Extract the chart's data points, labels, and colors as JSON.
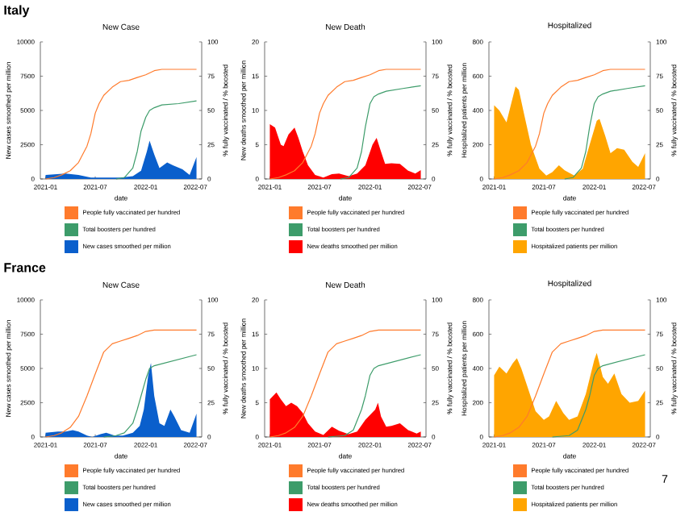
{
  "chart_data": [
    {
      "type": "area",
      "title": "New Case",
      "xlabel": "date",
      "ylabel": "New cases smoothed per million",
      "y2label": "% fully vaccinated / % boosted",
      "annotations": [
        "Italy"
      ],
      "legend": "bottom",
      "xlim": [
        "2020-12-13",
        "2022-07-24"
      ],
      "xticks": [
        "2021-01",
        "2021-07",
        "2022-01",
        "2022-07"
      ],
      "ylim": [
        0,
        10000
      ],
      "yticks": [
        0,
        2500,
        5000,
        7500,
        10000
      ],
      "y2lim": [
        0,
        100
      ],
      "y2ticks": [
        0,
        25,
        50,
        75,
        100
      ],
      "series": [
        {
          "name": "People fully vaccinated per hundred",
          "type": "line",
          "axis": "y2",
          "color": "#ff7b2c",
          "x": [
            "2021-01-01",
            "2021-02-01",
            "2021-03-01",
            "2021-04-01",
            "2021-05-01",
            "2021-06-01",
            "2021-06-15",
            "2021-07-01",
            "2021-07-15",
            "2021-08-01",
            "2021-09-01",
            "2021-10-01",
            "2021-11-01",
            "2021-12-01",
            "2022-01-01",
            "2022-02-01",
            "2022-03-01",
            "2022-07-05"
          ],
          "values": [
            0,
            1,
            3,
            6,
            12,
            24,
            33,
            48,
            55,
            61,
            67,
            71,
            72,
            74,
            76,
            79,
            80,
            80
          ]
        },
        {
          "name": "Total boosters per hundred",
          "type": "line",
          "axis": "y2",
          "color": "#3d9c6a",
          "x": [
            "2021-09-15",
            "2021-10-15",
            "2021-11-15",
            "2021-12-01",
            "2021-12-15",
            "2022-01-01",
            "2022-01-15",
            "2022-02-01",
            "2022-03-01",
            "2022-05-01",
            "2022-07-05"
          ],
          "values": [
            0,
            1,
            8,
            20,
            35,
            45,
            50,
            52,
            54,
            55,
            57
          ]
        },
        {
          "name": "New cases smoothed per million",
          "color": "#0a5fcc",
          "x": [
            "2021-01-01",
            "2021-03-15",
            "2021-05-01",
            "2021-06-15",
            "2021-08-01",
            "2021-10-01",
            "2021-11-15",
            "2021-12-15",
            "2022-01-05",
            "2022-01-15",
            "2022-02-01",
            "2022-02-20",
            "2022-03-20",
            "2022-04-10",
            "2022-05-15",
            "2022-06-10",
            "2022-07-05"
          ],
          "values": [
            300,
            400,
            300,
            100,
            100,
            100,
            200,
            600,
            2000,
            2800,
            1800,
            800,
            1200,
            1000,
            700,
            300,
            1600
          ]
        }
      ]
    },
    {
      "type": "area",
      "title": "New Death",
      "xlabel": "date",
      "ylabel": "New deaths smoothed per million",
      "y2label": "% fully vaccinated / % boosted",
      "legend": "bottom",
      "xlim": [
        "2020-12-13",
        "2022-07-24"
      ],
      "xticks": [
        "2021-01",
        "2021-07",
        "2022-01",
        "2022-07"
      ],
      "ylim": [
        0,
        20
      ],
      "yticks": [
        0,
        5,
        10,
        15,
        20
      ],
      "y2lim": [
        0,
        100
      ],
      "y2ticks": [
        0,
        25,
        50,
        75,
        100
      ],
      "series": [
        {
          "name": "People fully vaccinated per hundred",
          "type": "line",
          "axis": "y2",
          "color": "#ff7b2c",
          "x": [
            "2021-01-01",
            "2021-02-01",
            "2021-03-01",
            "2021-04-01",
            "2021-05-01",
            "2021-06-01",
            "2021-06-15",
            "2021-07-01",
            "2021-07-15",
            "2021-08-01",
            "2021-09-01",
            "2021-10-01",
            "2021-11-01",
            "2021-12-01",
            "2022-01-01",
            "2022-02-01",
            "2022-03-01",
            "2022-07-05"
          ],
          "values": [
            0,
            1,
            3,
            6,
            12,
            24,
            33,
            48,
            55,
            61,
            67,
            71,
            72,
            74,
            76,
            79,
            80,
            80
          ]
        },
        {
          "name": "Total boosters per hundred",
          "type": "line",
          "axis": "y2",
          "color": "#3d9c6a",
          "x": [
            "2021-09-15",
            "2021-10-15",
            "2021-11-15",
            "2021-12-01",
            "2021-12-15",
            "2022-01-01",
            "2022-01-15",
            "2022-02-01",
            "2022-03-01",
            "2022-05-01",
            "2022-07-05"
          ],
          "values": [
            0,
            1,
            8,
            20,
            38,
            55,
            60,
            62,
            64,
            66,
            68
          ]
        },
        {
          "name": "New deaths smoothed per million",
          "color": "#ff0000",
          "x": [
            "2021-01-01",
            "2021-01-20",
            "2021-02-10",
            "2021-02-20",
            "2021-03-10",
            "2021-04-01",
            "2021-04-15",
            "2021-05-01",
            "2021-05-20",
            "2021-06-15",
            "2021-07-15",
            "2021-08-15",
            "2021-09-10",
            "2021-10-15",
            "2021-11-15",
            "2021-12-15",
            "2022-01-10",
            "2022-01-25",
            "2022-02-10",
            "2022-02-25",
            "2022-03-20",
            "2022-04-20",
            "2022-05-20",
            "2022-06-15",
            "2022-07-05"
          ],
          "values": [
            8,
            7.5,
            5,
            4.8,
            6.5,
            7.5,
            6,
            4,
            2,
            0.6,
            0.2,
            0.7,
            0.8,
            0.4,
            0.8,
            2,
            5,
            6,
            4,
            2.2,
            2.3,
            2.2,
            1.2,
            0.8,
            1.3
          ]
        }
      ]
    },
    {
      "type": "area",
      "title": "Hospitalized",
      "xlabel": "date",
      "ylabel": "Hospitalized patients per million",
      "y2label": "% fully vaccinated / % boosted",
      "legend": "bottom",
      "xlim": [
        "2020-12-13",
        "2022-07-24"
      ],
      "xticks": [
        "2021-01",
        "2021-07",
        "2022-01",
        "2022-07"
      ],
      "ylim": [
        0,
        800
      ],
      "yticks": [
        0,
        200,
        400,
        600,
        800
      ],
      "y2lim": [
        0,
        100
      ],
      "y2ticks": [
        0,
        25,
        50,
        75,
        100
      ],
      "series": [
        {
          "name": "People fully vaccinated per hundred",
          "type": "line",
          "axis": "y2",
          "color": "#ff7b2c",
          "x": [
            "2021-01-01",
            "2021-02-01",
            "2021-03-01",
            "2021-04-01",
            "2021-05-01",
            "2021-06-01",
            "2021-06-15",
            "2021-07-01",
            "2021-07-15",
            "2021-08-01",
            "2021-09-01",
            "2021-10-01",
            "2021-11-01",
            "2021-12-01",
            "2022-01-01",
            "2022-02-01",
            "2022-03-01",
            "2022-07-05"
          ],
          "values": [
            0,
            1,
            3,
            6,
            12,
            24,
            33,
            48,
            55,
            61,
            67,
            71,
            72,
            74,
            76,
            79,
            80,
            80
          ]
        },
        {
          "name": "Total boosters per hundred",
          "type": "line",
          "axis": "y2",
          "color": "#3d9c6a",
          "x": [
            "2021-09-15",
            "2021-10-15",
            "2021-11-15",
            "2021-12-01",
            "2021-12-15",
            "2022-01-01",
            "2022-01-15",
            "2022-02-01",
            "2022-03-01",
            "2022-05-01",
            "2022-07-05"
          ],
          "values": [
            0,
            1,
            8,
            20,
            38,
            55,
            60,
            62,
            64,
            66,
            68
          ]
        },
        {
          "name": "Hospitalized patients per million",
          "color": "#ffa500",
          "x": [
            "2021-01-01",
            "2021-01-20",
            "2021-02-15",
            "2021-03-01",
            "2021-03-20",
            "2021-04-01",
            "2021-04-20",
            "2021-05-15",
            "2021-06-15",
            "2021-07-10",
            "2021-08-01",
            "2021-08-25",
            "2021-09-15",
            "2021-10-20",
            "2021-11-20",
            "2021-12-15",
            "2022-01-10",
            "2022-01-20",
            "2022-02-10",
            "2022-03-01",
            "2022-03-25",
            "2022-04-20",
            "2022-05-20",
            "2022-06-10",
            "2022-07-05"
          ],
          "values": [
            430,
            400,
            330,
            420,
            540,
            520,
            380,
            200,
            60,
            20,
            40,
            80,
            50,
            20,
            60,
            200,
            340,
            350,
            250,
            150,
            180,
            170,
            100,
            70,
            150
          ]
        }
      ]
    },
    {
      "type": "area",
      "title": "New Case",
      "xlabel": "date",
      "ylabel": "New cases smoothed per million",
      "y2label": "% fully vaccinated / % boosted",
      "annotations": [
        "France"
      ],
      "legend": "bottom",
      "xlim": [
        "2020-12-13",
        "2022-07-24"
      ],
      "xticks": [
        "2021-01",
        "2021-07",
        "2022-01",
        "2022-07"
      ],
      "ylim": [
        0,
        10000
      ],
      "yticks": [
        0,
        2500,
        5000,
        7500,
        10000
      ],
      "y2lim": [
        0,
        100
      ],
      "y2ticks": [
        0,
        25,
        50,
        75,
        100
      ],
      "series": [
        {
          "name": "People fully vaccinated per hundred",
          "type": "line",
          "axis": "y2",
          "color": "#ff7b2c",
          "x": [
            "2021-01-01",
            "2021-02-01",
            "2021-03-01",
            "2021-04-01",
            "2021-05-01",
            "2021-06-01",
            "2021-07-01",
            "2021-08-01",
            "2021-09-01",
            "2021-10-01",
            "2021-11-01",
            "2021-12-01",
            "2022-01-01",
            "2022-02-01",
            "2022-07-05"
          ],
          "values": [
            0,
            1,
            3,
            7,
            15,
            30,
            46,
            62,
            68,
            70,
            72,
            74,
            77,
            78,
            78
          ]
        },
        {
          "name": "Total boosters per hundred",
          "type": "line",
          "axis": "y2",
          "color": "#3d9c6a",
          "x": [
            "2021-08-01",
            "2021-09-15",
            "2021-10-15",
            "2021-11-15",
            "2021-12-01",
            "2021-12-15",
            "2022-01-01",
            "2022-01-15",
            "2022-02-01",
            "2022-07-05"
          ],
          "values": [
            0,
            1,
            3,
            10,
            20,
            30,
            42,
            50,
            52,
            60
          ]
        },
        {
          "name": "New cases smoothed per million",
          "color": "#0a5fcc",
          "x": [
            "2021-01-01",
            "2021-02-15",
            "2021-03-15",
            "2021-04-10",
            "2021-05-01",
            "2021-06-01",
            "2021-06-20",
            "2021-07-20",
            "2021-08-10",
            "2021-09-10",
            "2021-10-10",
            "2021-11-15",
            "2021-12-10",
            "2021-12-25",
            "2022-01-10",
            "2022-01-20",
            "2022-02-01",
            "2022-02-20",
            "2022-03-10",
            "2022-04-01",
            "2022-04-15",
            "2022-05-10",
            "2022-06-10",
            "2022-07-05"
          ],
          "values": [
            300,
            400,
            400,
            500,
            400,
            100,
            0,
            200,
            300,
            100,
            100,
            300,
            800,
            2000,
            4500,
            5400,
            3000,
            1000,
            800,
            2000,
            1500,
            500,
            300,
            1700
          ]
        }
      ]
    },
    {
      "type": "area",
      "title": "New Death",
      "xlabel": "date",
      "ylabel": "New deaths smoothed per million",
      "y2label": "% fully vaccinated / % boosted",
      "legend": "bottom",
      "xlim": [
        "2020-12-13",
        "2022-07-24"
      ],
      "xticks": [
        "2021-01",
        "2021-07",
        "2022-01",
        "2022-07"
      ],
      "ylim": [
        0,
        20
      ],
      "yticks": [
        0,
        5,
        10,
        15,
        20
      ],
      "y2lim": [
        0,
        100
      ],
      "y2ticks": [
        0,
        25,
        50,
        75,
        100
      ],
      "series": [
        {
          "name": "People fully vaccinated per hundred",
          "type": "line",
          "axis": "y2",
          "color": "#ff7b2c",
          "x": [
            "2021-01-01",
            "2021-02-01",
            "2021-03-01",
            "2021-04-01",
            "2021-05-01",
            "2021-06-01",
            "2021-07-01",
            "2021-08-01",
            "2021-09-01",
            "2021-10-01",
            "2021-11-01",
            "2021-12-01",
            "2022-01-01",
            "2022-02-01",
            "2022-07-05"
          ],
          "values": [
            0,
            1,
            3,
            7,
            15,
            30,
            46,
            62,
            68,
            70,
            72,
            74,
            77,
            78,
            78
          ]
        },
        {
          "name": "Total boosters per hundred",
          "type": "line",
          "axis": "y2",
          "color": "#3d9c6a",
          "x": [
            "2021-08-01",
            "2021-10-01",
            "2021-11-01",
            "2021-12-01",
            "2021-12-15",
            "2022-01-01",
            "2022-01-15",
            "2022-02-01",
            "2022-07-05"
          ],
          "values": [
            0,
            1,
            5,
            20,
            30,
            45,
            50,
            52,
            60
          ]
        },
        {
          "name": "New deaths smoothed per million",
          "color": "#ff0000",
          "x": [
            "2021-01-01",
            "2021-01-25",
            "2021-02-10",
            "2021-03-01",
            "2021-03-20",
            "2021-04-10",
            "2021-05-01",
            "2021-05-20",
            "2021-06-15",
            "2021-07-15",
            "2021-08-15",
            "2021-09-10",
            "2021-10-15",
            "2021-11-15",
            "2021-12-15",
            "2022-01-20",
            "2022-01-30",
            "2022-02-10",
            "2022-03-01",
            "2022-03-20",
            "2022-04-20",
            "2022-05-20",
            "2022-06-20",
            "2022-07-05"
          ],
          "values": [
            5.5,
            6.5,
            5.5,
            4.5,
            5,
            4.5,
            3.5,
            2,
            0.8,
            0.3,
            1.5,
            0.9,
            0.4,
            0.8,
            2.5,
            4,
            5,
            3,
            1.5,
            1.6,
            2,
            1,
            0.5,
            0.8
          ]
        }
      ]
    },
    {
      "type": "area",
      "title": "Hospitalized",
      "xlabel": "date",
      "ylabel": "Hospitalized patients per million",
      "y2label": "% fully vaccinated / % boosted",
      "annotations": [
        "7"
      ],
      "legend": "bottom",
      "xlim": [
        "2020-12-13",
        "2022-07-24"
      ],
      "xticks": [
        "2021-01",
        "2021-07",
        "2022-01",
        "2022-07"
      ],
      "ylim": [
        0,
        800
      ],
      "yticks": [
        0,
        200,
        400,
        600,
        800
      ],
      "y2lim": [
        0,
        100
      ],
      "y2ticks": [
        0,
        25,
        50,
        75,
        100
      ],
      "series": [
        {
          "name": "People fully vaccinated per hundred",
          "type": "line",
          "axis": "y2",
          "color": "#ff7b2c",
          "x": [
            "2021-01-01",
            "2021-02-01",
            "2021-03-01",
            "2021-04-01",
            "2021-05-01",
            "2021-06-01",
            "2021-07-01",
            "2021-08-01",
            "2021-09-01",
            "2021-10-01",
            "2021-11-01",
            "2021-12-01",
            "2022-01-01",
            "2022-02-01",
            "2022-07-05"
          ],
          "values": [
            0,
            1,
            3,
            7,
            15,
            30,
            46,
            62,
            68,
            70,
            72,
            74,
            77,
            78,
            78
          ]
        },
        {
          "name": "Total boosters per hundred",
          "type": "line",
          "axis": "y2",
          "color": "#3d9c6a",
          "x": [
            "2021-08-01",
            "2021-10-01",
            "2021-11-01",
            "2021-12-01",
            "2021-12-15",
            "2022-01-01",
            "2022-01-15",
            "2022-02-01",
            "2022-07-05"
          ],
          "values": [
            0,
            1,
            5,
            20,
            30,
            45,
            50,
            52,
            60
          ]
        },
        {
          "name": "Hospitalized patients per million",
          "color": "#ffa500",
          "x": [
            "2021-01-01",
            "2021-01-20",
            "2021-02-15",
            "2021-03-10",
            "2021-03-25",
            "2021-04-10",
            "2021-05-01",
            "2021-06-01",
            "2021-07-01",
            "2021-07-20",
            "2021-08-15",
            "2021-09-10",
            "2021-10-01",
            "2021-11-01",
            "2021-12-01",
            "2022-01-01",
            "2022-01-10",
            "2022-02-01",
            "2022-02-20",
            "2022-03-15",
            "2022-04-10",
            "2022-05-10",
            "2022-06-10",
            "2022-07-05"
          ],
          "values": [
            360,
            410,
            370,
            430,
            460,
            400,
            300,
            150,
            100,
            120,
            210,
            140,
            100,
            120,
            250,
            450,
            490,
            350,
            310,
            370,
            250,
            200,
            210,
            270
          ]
        }
      ]
    }
  ]
}
